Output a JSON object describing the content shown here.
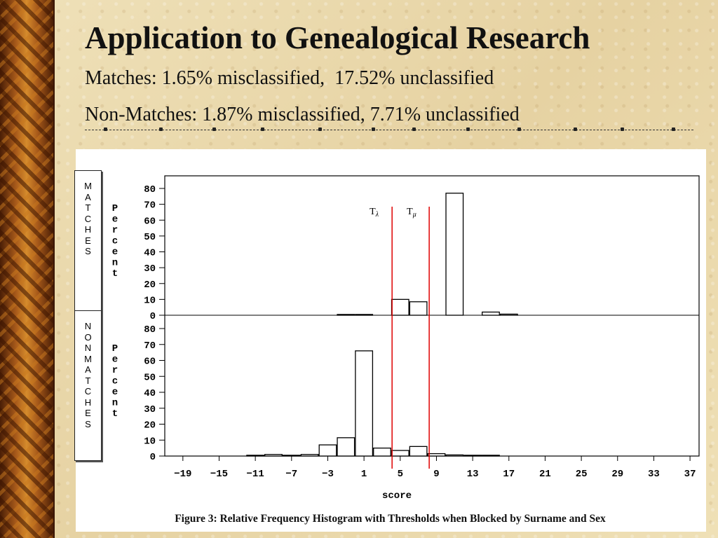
{
  "slide": {
    "title": "Application to Genealogical Research",
    "line1": "Matches: 1.65% misclassified,  17.52% unclassified",
    "line2": "Non-Matches: 1.87% misclassified, 7.71% unclassified",
    "caption": "Figure 3: Relative Frequency Histogram with Thresholds when Blocked by Surname and Sex",
    "matches_label": "MATCHES",
    "nonmatches_label": "NONMATCHES"
  },
  "chart_data": {
    "type": "bar",
    "xlabel": "score",
    "ylabel": "Percent",
    "x_ticks": [
      -19,
      -15,
      -11,
      -7,
      -3,
      1,
      5,
      9,
      13,
      17,
      21,
      25,
      29,
      33,
      37
    ],
    "xlim": [
      -21,
      38
    ],
    "ylim": [
      0,
      80
    ],
    "y_ticks": [
      0,
      10,
      20,
      30,
      40,
      50,
      60,
      70,
      80
    ],
    "bin_width": 2,
    "thresholds": [
      {
        "name": "Tλ",
        "label": "T",
        "sub": "λ",
        "x": 4.1
      },
      {
        "name": "Tμ",
        "label": "T",
        "sub": "μ",
        "x": 8.2
      }
    ],
    "panels": [
      {
        "name": "MATCHES",
        "bins": [
          {
            "x": -1,
            "value": 0.5
          },
          {
            "x": 1,
            "value": 0.5
          },
          {
            "x": 5,
            "value": 10
          },
          {
            "x": 7,
            "value": 8.5
          },
          {
            "x": 11,
            "value": 77
          },
          {
            "x": 15,
            "value": 2
          },
          {
            "x": 17,
            "value": 0.7
          }
        ]
      },
      {
        "name": "NONMATCHES",
        "bins": [
          {
            "x": -11,
            "value": 0.5
          },
          {
            "x": -9,
            "value": 1
          },
          {
            "x": -7,
            "value": 0.5
          },
          {
            "x": -5,
            "value": 1
          },
          {
            "x": -3,
            "value": 7
          },
          {
            "x": -1,
            "value": 11.5
          },
          {
            "x": 1,
            "value": 66
          },
          {
            "x": 3,
            "value": 5
          },
          {
            "x": 5,
            "value": 3.5
          },
          {
            "x": 7,
            "value": 6
          },
          {
            "x": 9,
            "value": 1.5
          },
          {
            "x": 11,
            "value": 0.7
          },
          {
            "x": 13,
            "value": 0.5
          },
          {
            "x": 15,
            "value": 0.5
          }
        ]
      }
    ]
  }
}
